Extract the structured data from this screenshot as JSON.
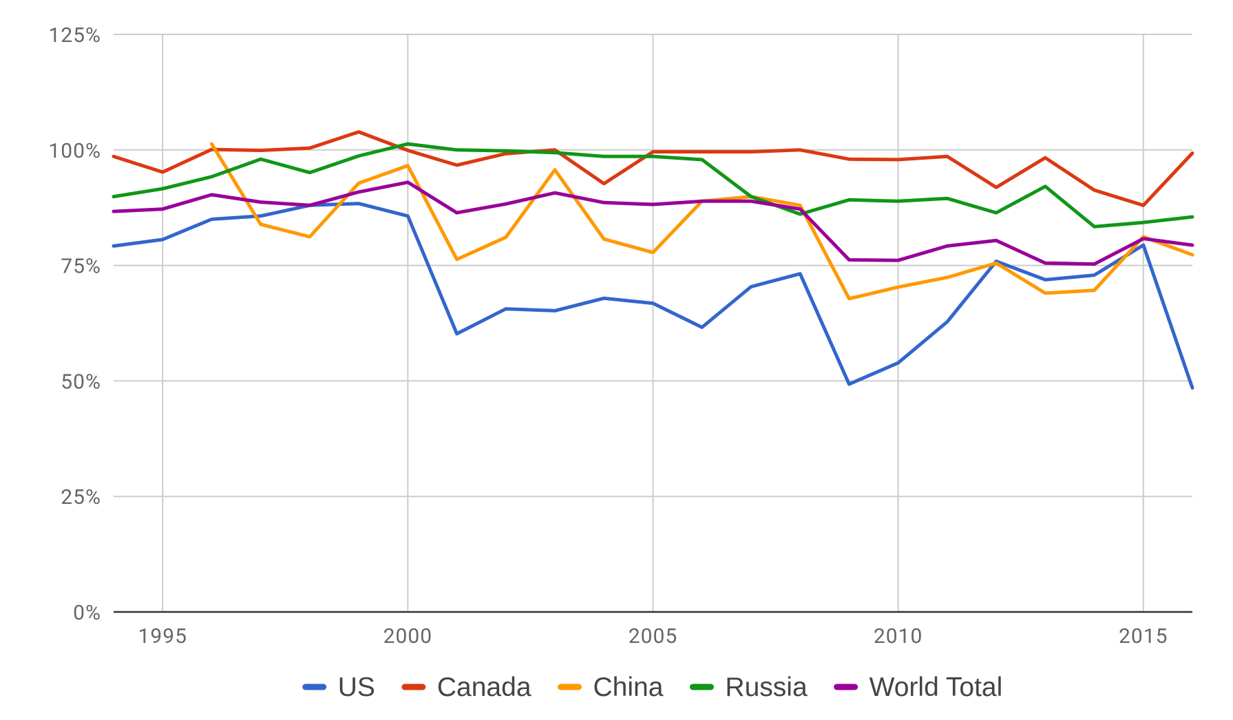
{
  "chart_data": {
    "type": "line",
    "title": "",
    "xlabel": "",
    "ylabel": "",
    "x": [
      1994,
      1995,
      1996,
      1997,
      1998,
      1999,
      2000,
      2001,
      2002,
      2003,
      2004,
      2005,
      2006,
      2007,
      2008,
      2009,
      2010,
      2011,
      2012,
      2013,
      2014,
      2015,
      2016
    ],
    "xlim": [
      1994,
      2016
    ],
    "x_ticks": [
      1995,
      2000,
      2005,
      2010,
      2015
    ],
    "x_tick_labels": [
      "1995",
      "2000",
      "2005",
      "2010",
      "2015"
    ],
    "ylim": [
      0,
      125
    ],
    "y_ticks": [
      0,
      25,
      50,
      75,
      100,
      125
    ],
    "y_tick_labels": [
      "0%",
      "25%",
      "50%",
      "75%",
      "100%",
      "125%"
    ],
    "grid": true,
    "legend_position": "bottom",
    "series": [
      {
        "name": "US",
        "color": "#3366cc",
        "values": [
          79.2,
          80.6,
          85.0,
          85.7,
          88.0,
          88.4,
          85.7,
          60.2,
          65.6,
          65.2,
          67.9,
          66.8,
          61.6,
          70.4,
          73.2,
          49.3,
          53.9,
          62.8,
          75.9,
          71.9,
          72.9,
          79.4,
          48.5
        ]
      },
      {
        "name": "Canada",
        "color": "#dc3912",
        "values": [
          98.6,
          95.2,
          100.1,
          99.9,
          100.4,
          103.9,
          99.9,
          96.7,
          99.2,
          100.0,
          92.7,
          99.6,
          99.6,
          99.6,
          100.0,
          98.0,
          97.9,
          98.6,
          91.9,
          98.3,
          91.3,
          88.0,
          99.3
        ]
      },
      {
        "name": "China",
        "color": "#ff9900",
        "values": [
          null,
          null,
          101.3,
          83.9,
          81.2,
          92.8,
          96.6,
          76.3,
          81.1,
          95.7,
          80.7,
          77.8,
          88.9,
          89.9,
          88.0,
          67.8,
          70.3,
          72.4,
          75.5,
          69.0,
          69.6,
          81.2,
          77.3
        ]
      },
      {
        "name": "Russia",
        "color": "#109618",
        "values": [
          89.9,
          91.6,
          94.2,
          98.0,
          95.1,
          98.7,
          101.3,
          100.0,
          99.8,
          99.4,
          98.6,
          98.6,
          97.9,
          89.9,
          86.1,
          89.2,
          88.9,
          89.5,
          86.4,
          92.1,
          83.4,
          84.3,
          85.5
        ]
      },
      {
        "name": "World Total",
        "color": "#990099",
        "values": [
          86.7,
          87.2,
          90.3,
          88.7,
          88.0,
          90.9,
          93.0,
          86.4,
          88.3,
          90.7,
          88.6,
          88.2,
          88.9,
          88.9,
          87.2,
          76.2,
          76.1,
          79.2,
          80.4,
          75.5,
          75.3,
          80.8,
          79.4
        ]
      }
    ]
  }
}
